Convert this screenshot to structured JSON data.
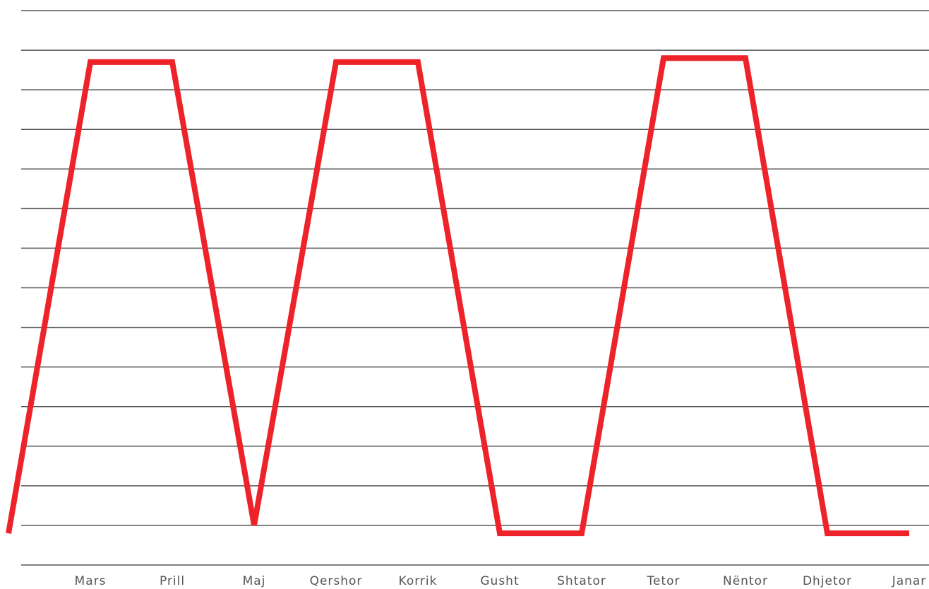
{
  "chart_data": {
    "type": "line",
    "categories": [
      null,
      "Mars",
      "Prill",
      "Maj",
      "Qershor",
      "Korrik",
      "Gusht",
      "Shtator",
      "Tetor",
      "Nëntor",
      "Dhjetor",
      "Janar"
    ],
    "series": [
      {
        "color": "#ee2229",
        "values": [
          0.8,
          12.7,
          12.7,
          1.0,
          12.7,
          12.7,
          0.8,
          0.8,
          12.8,
          12.8,
          0.8,
          0.8
        ]
      }
    ],
    "ylim": [
      0,
      14
    ],
    "yticks": [
      0,
      1,
      2,
      3,
      4,
      5,
      6,
      7,
      8,
      9,
      10,
      11,
      12,
      13,
      14
    ],
    "grid": true
  }
}
